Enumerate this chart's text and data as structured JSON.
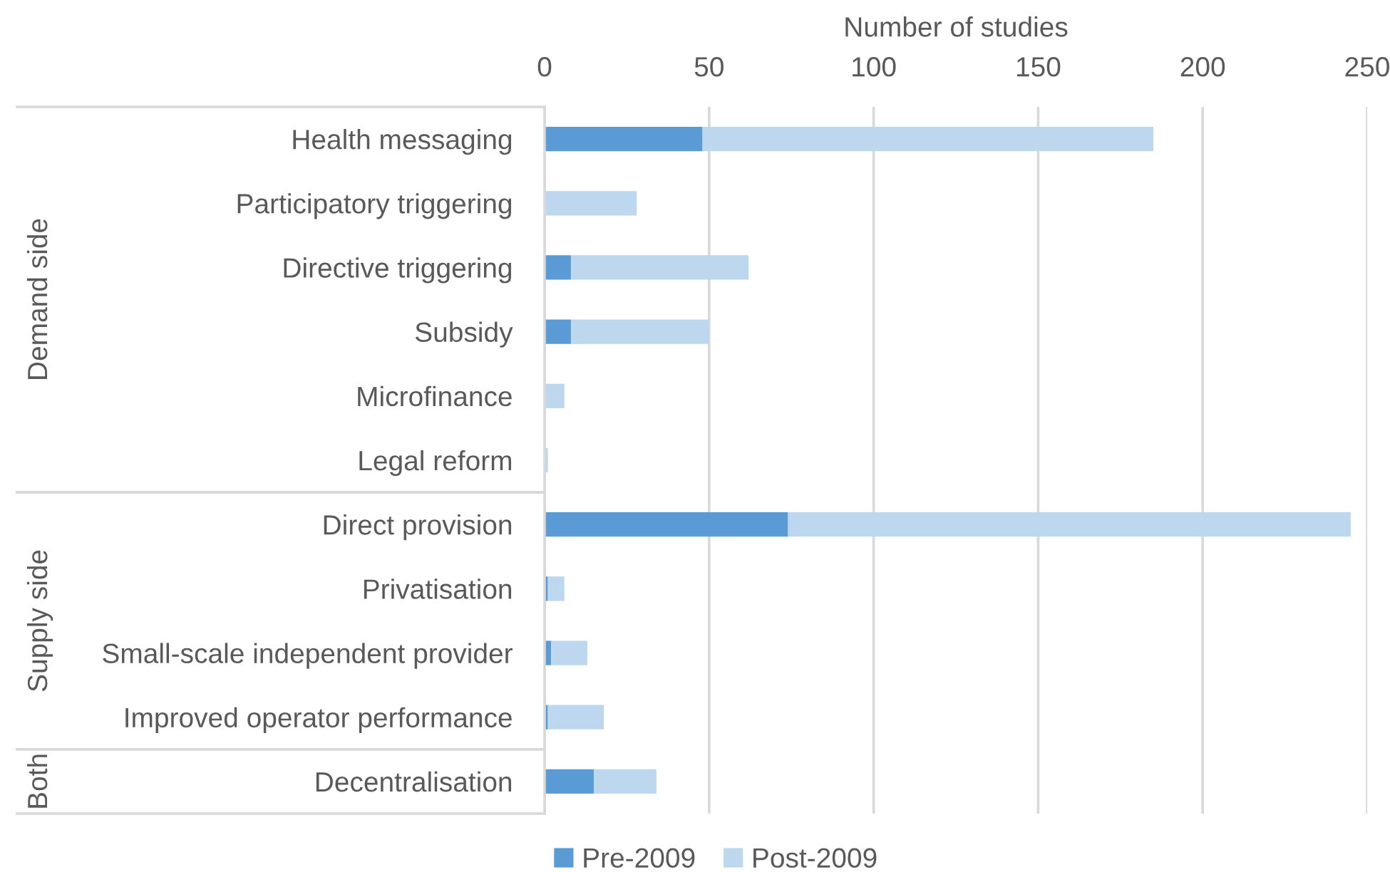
{
  "chart_data": {
    "type": "bar",
    "orientation": "horizontal",
    "stacked": true,
    "xlabel": "Number of studies",
    "categories": [
      "Health messaging",
      "Participatory triggering",
      "Directive triggering",
      "Subsidy",
      "Microfinance",
      "Legal reform",
      "Direct provision",
      "Privatisation",
      "Small-scale independent provider",
      "Improved operator performance",
      "Decentralisation"
    ],
    "series": [
      {
        "name": "Pre-2009",
        "color": "#5b9bd5",
        "values": [
          48,
          0,
          8,
          8,
          0,
          0,
          74,
          1,
          2,
          1,
          15
        ]
      },
      {
        "name": "Post-2009",
        "color": "#bdd7ee",
        "values": [
          137,
          28,
          54,
          42,
          6,
          1,
          171,
          5,
          11,
          17,
          19
        ]
      }
    ],
    "xlim": [
      0,
      250
    ],
    "xticks": [
      0,
      50,
      100,
      150,
      200,
      250
    ],
    "grid": "x",
    "legend": "bottom",
    "annotations": [
      "Demand side",
      "Supply side",
      "Both"
    ]
  }
}
